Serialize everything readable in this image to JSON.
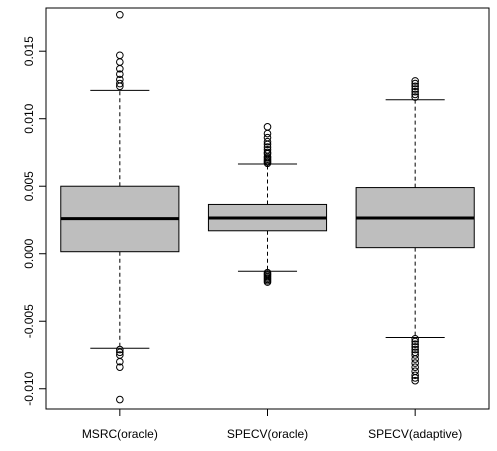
{
  "chart_data": {
    "type": "boxplot",
    "title": "",
    "xlabel": "",
    "ylabel": "",
    "ylim": [
      -0.0115,
      0.0182
    ],
    "yticks": [
      -0.01,
      -0.005,
      0.0,
      0.005,
      0.01,
      0.015
    ],
    "ytick_labels": [
      "-0.010",
      "-0.005",
      "0.000",
      "0.005",
      "0.010",
      "0.015"
    ],
    "grid": false,
    "box_fill": "#bebebe",
    "categories": [
      "MSRC(oracle)",
      "SPECV(oracle)",
      "SPECV(adaptive)"
    ],
    "boxes": [
      {
        "label": "MSRC(oracle)",
        "whisker_low": -0.007,
        "q1": 0.00015,
        "median": 0.0026,
        "q3": 0.005,
        "whisker_high": 0.0121,
        "outliers": [
          0.0177,
          0.0147,
          0.0142,
          0.0137,
          0.0133,
          0.0129,
          0.0126,
          0.0124,
          -0.0071,
          -0.0073,
          -0.0075,
          -0.008,
          -0.0084,
          -0.0108
        ]
      },
      {
        "label": "SPECV(oracle)",
        "whisker_low": -0.0013,
        "q1": 0.0017,
        "median": 0.00265,
        "q3": 0.00365,
        "whisker_high": 0.00665,
        "outliers": [
          0.0094,
          0.0089,
          0.0086,
          0.0083,
          0.0081,
          0.0079,
          0.0077,
          0.0075,
          0.0074,
          0.0072,
          0.0071,
          0.007,
          0.0069,
          0.0068,
          0.0067,
          -0.0014,
          -0.0015,
          -0.0016,
          -0.0017,
          -0.0018,
          -0.0019,
          -0.002,
          -0.0021
        ]
      },
      {
        "label": "SPECV(adaptive)",
        "whisker_low": -0.0062,
        "q1": 0.00045,
        "median": 0.00265,
        "q3": 0.0049,
        "whisker_high": 0.0114,
        "outliers": [
          0.0128,
          0.0126,
          0.0124,
          0.0122,
          0.012,
          0.0118,
          0.0116,
          -0.0063,
          -0.0065,
          -0.0067,
          -0.0069,
          -0.0071,
          -0.0073,
          -0.0075,
          -0.0078,
          -0.0081,
          -0.0084,
          -0.0087,
          -0.009,
          -0.0092,
          -0.0094
        ]
      }
    ]
  }
}
